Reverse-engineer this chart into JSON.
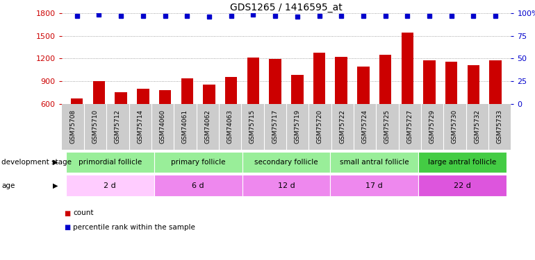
{
  "title": "GDS1265 / 1416595_at",
  "samples": [
    "GSM75708",
    "GSM75710",
    "GSM75712",
    "GSM75714",
    "GSM74060",
    "GSM74061",
    "GSM74062",
    "GSM74063",
    "GSM75715",
    "GSM75717",
    "GSM75719",
    "GSM75720",
    "GSM75722",
    "GSM75724",
    "GSM75725",
    "GSM75727",
    "GSM75729",
    "GSM75730",
    "GSM75732",
    "GSM75733"
  ],
  "counts": [
    670,
    900,
    760,
    800,
    780,
    940,
    860,
    960,
    1210,
    1195,
    985,
    1280,
    1220,
    1095,
    1250,
    1540,
    1175,
    1155,
    1110,
    1175
  ],
  "percentile_ranks": [
    97,
    98,
    97,
    97,
    97,
    97,
    96,
    97,
    98,
    97,
    96,
    97,
    97,
    97,
    97,
    97,
    97,
    97,
    97,
    97
  ],
  "bar_color": "#cc0000",
  "dot_color": "#0000cc",
  "ylim_left": [
    600,
    1800
  ],
  "ylim_right": [
    0,
    100
  ],
  "yticks_left": [
    600,
    900,
    1200,
    1500,
    1800
  ],
  "yticks_right": [
    0,
    25,
    50,
    75,
    100
  ],
  "ytick_labels_right": [
    "0",
    "25",
    "50",
    "75",
    "100%"
  ],
  "groups": [
    {
      "label": "primordial follicle",
      "age": "2 d",
      "start": 0,
      "end": 4,
      "stage_color": "#99ee99",
      "age_color": "#ffccff"
    },
    {
      "label": "primary follicle",
      "age": "6 d",
      "start": 4,
      "end": 8,
      "stage_color": "#99ee99",
      "age_color": "#ee88ee"
    },
    {
      "label": "secondary follicle",
      "age": "12 d",
      "start": 8,
      "end": 12,
      "stage_color": "#99ee99",
      "age_color": "#ee88ee"
    },
    {
      "label": "small antral follicle",
      "age": "17 d",
      "start": 12,
      "end": 16,
      "stage_color": "#99ee99",
      "age_color": "#ee88ee"
    },
    {
      "label": "large antral follicle",
      "age": "22 d",
      "start": 16,
      "end": 20,
      "stage_color": "#44cc44",
      "age_color": "#dd55dd"
    }
  ],
  "dev_stage_label": "development stage",
  "age_label": "age",
  "legend_count_label": "count",
  "legend_pct_label": "percentile rank within the sample",
  "bar_color_legend": "#cc0000",
  "dot_color_legend": "#0000cc",
  "tick_color_left": "#cc0000",
  "tick_color_right": "#0000cc",
  "grid_color": "#888888",
  "bar_width": 0.55,
  "xtick_bg_color": "#cccccc"
}
